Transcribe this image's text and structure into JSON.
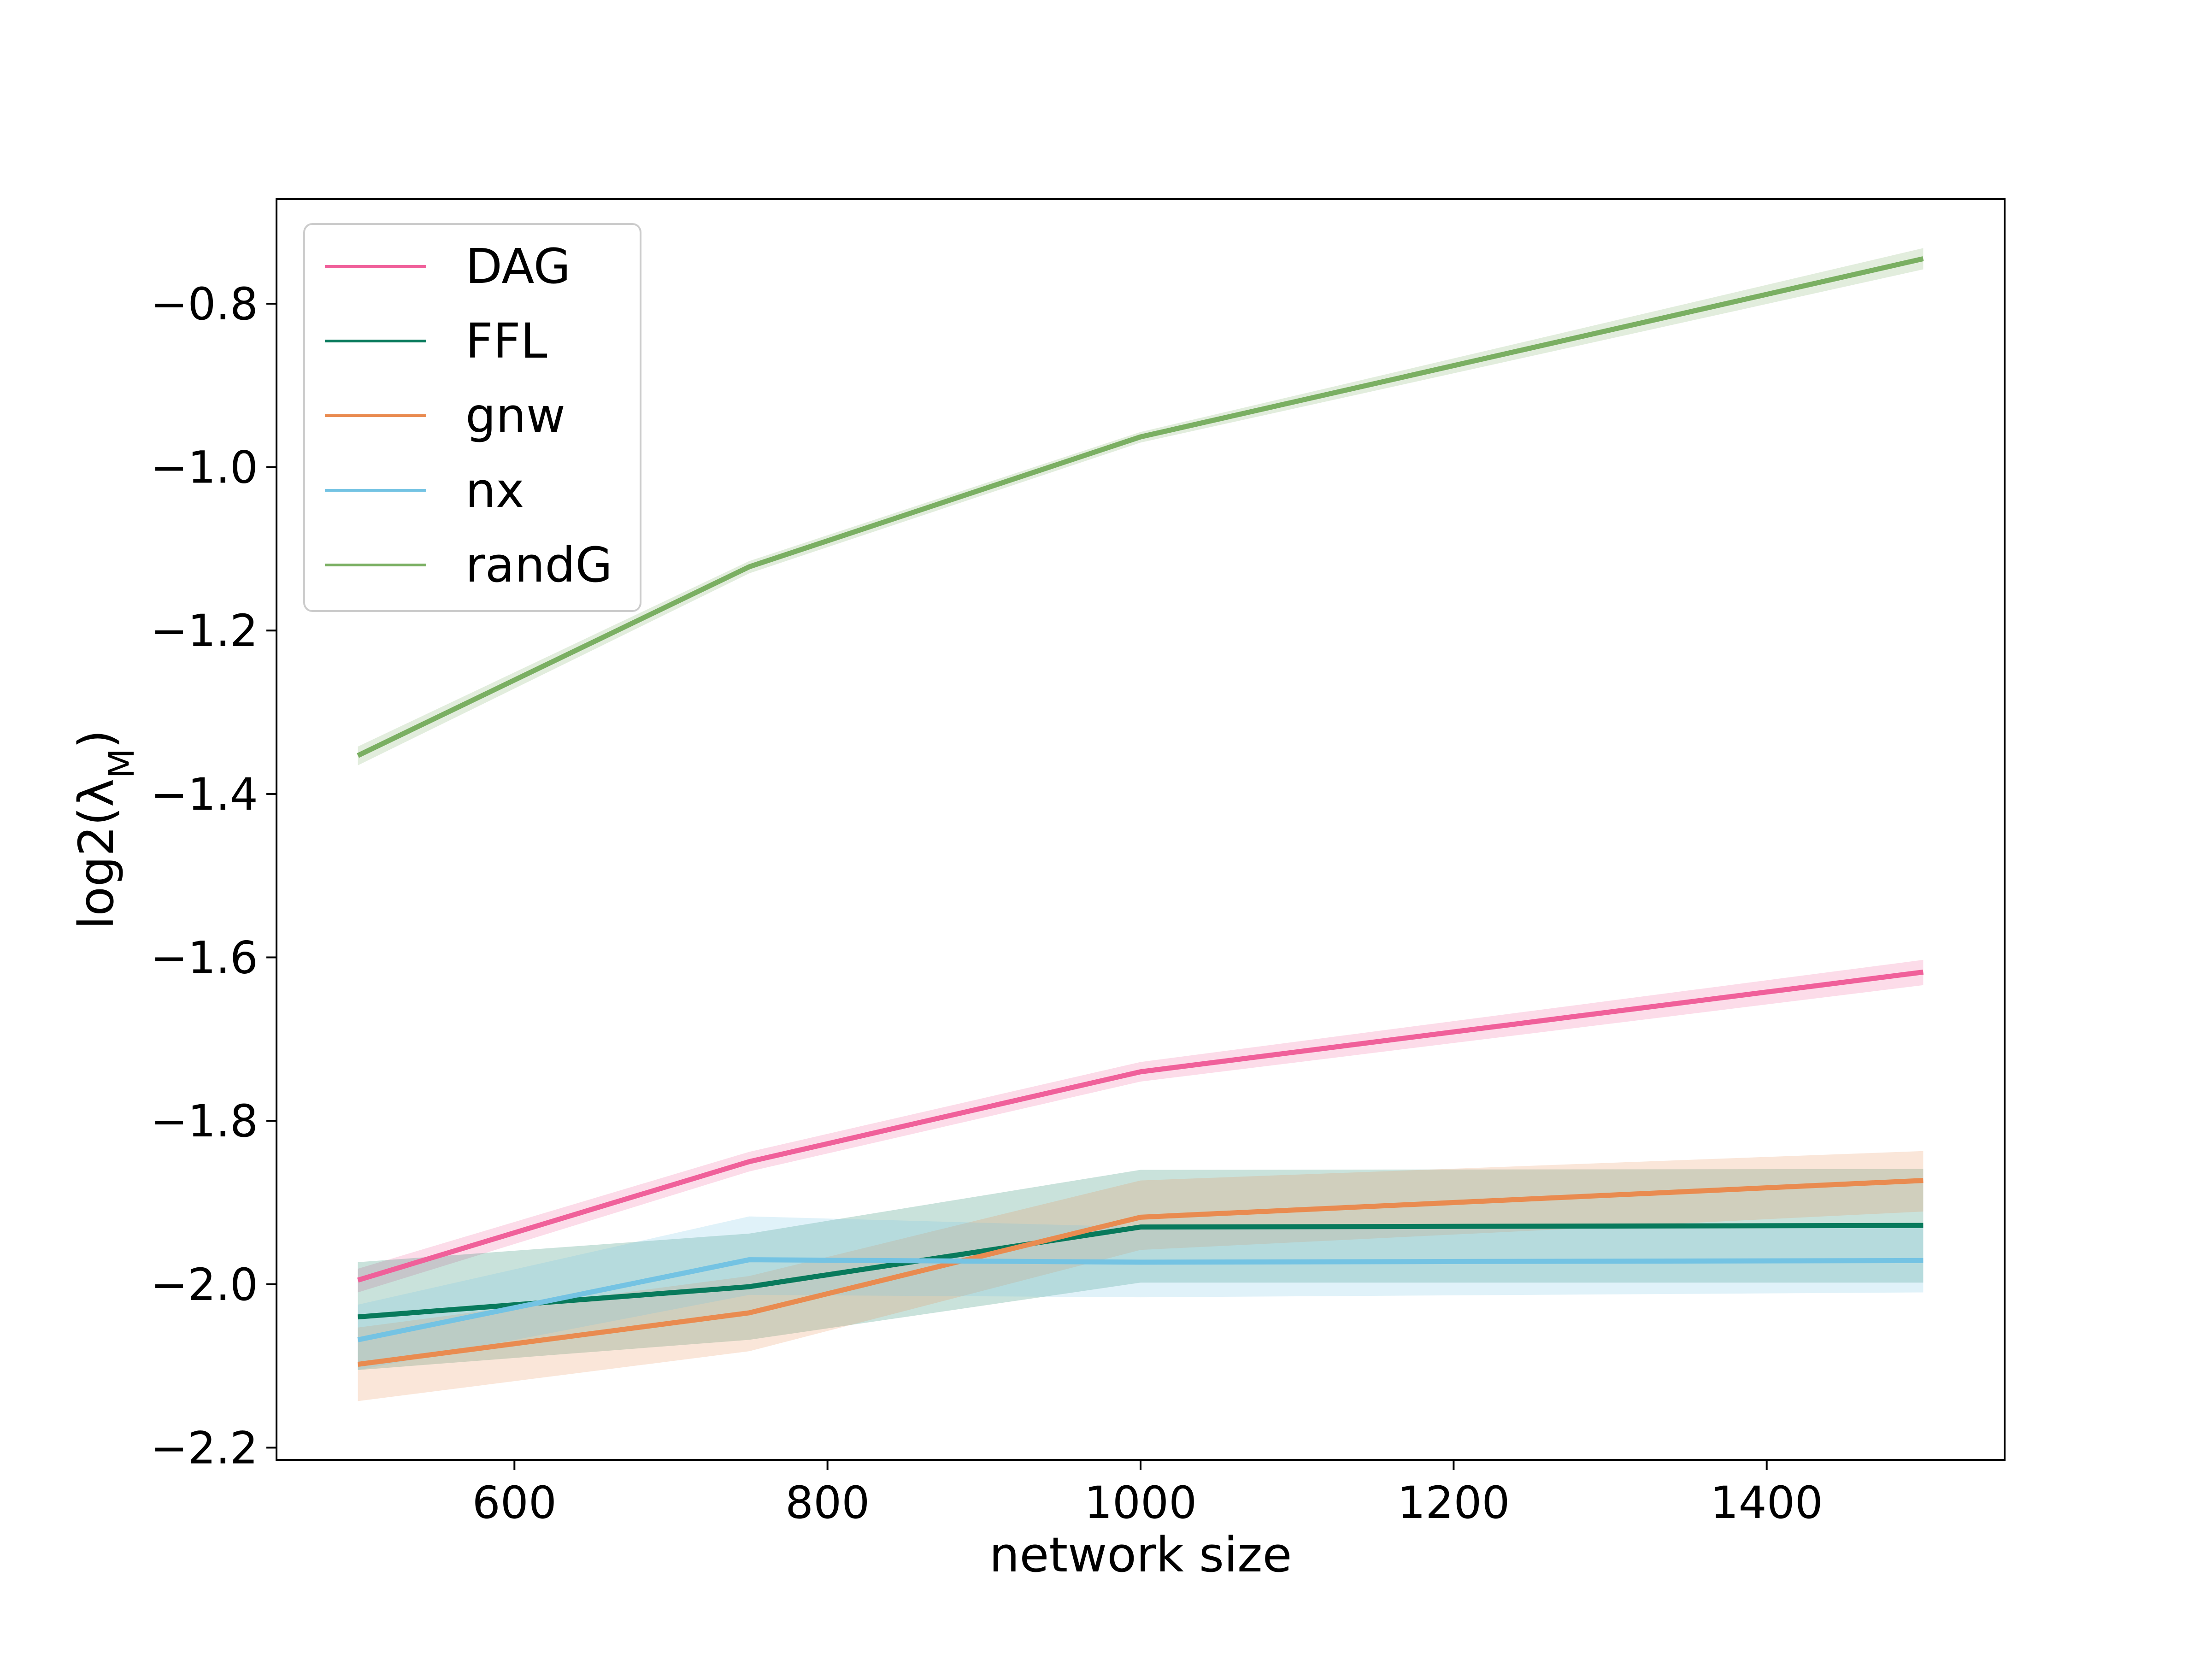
{
  "chart_data": {
    "type": "line",
    "title": "",
    "xlabel": "network size",
    "ylabel": "log2(λ_M)",
    "ylabel_base": "log2(λ",
    "ylabel_sub": "M",
    "ylabel_close": ")",
    "x": [
      500,
      750,
      1000,
      1500
    ],
    "xlim": [
      448,
      1552
    ],
    "ylim": [
      -2.215,
      -0.672
    ],
    "xticks": [
      600,
      800,
      1000,
      1200,
      1400
    ],
    "yticks": [
      -2.2,
      -2.0,
      -1.8,
      -1.6,
      -1.4,
      -1.2,
      -1.0,
      -0.8
    ],
    "xtick_labels": [
      "600",
      "800",
      "1000",
      "1200",
      "1400"
    ],
    "ytick_labels": [
      "−2.2",
      "−2.0",
      "−1.8",
      "−1.6",
      "−1.4",
      "−1.2",
      "−1.0",
      "−0.8"
    ],
    "grid": false,
    "legend_position": "top-left",
    "series": [
      {
        "name": "DAG",
        "color": "#f0609a",
        "values": [
          -1.995,
          -1.85,
          -1.74,
          -1.618
        ],
        "lower": [
          -2.01,
          -1.862,
          -1.752,
          -1.634
        ],
        "upper": [
          -1.981,
          -1.838,
          -1.728,
          -1.603
        ]
      },
      {
        "name": "FFL",
        "color": "#087a5c",
        "values": [
          -2.04,
          -2.003,
          -1.93,
          -1.928
        ],
        "lower": [
          -2.105,
          -2.068,
          -1.998,
          -1.998
        ],
        "upper": [
          -1.973,
          -1.938,
          -1.86,
          -1.859
        ]
      },
      {
        "name": "gnw",
        "color": "#e98b50",
        "values": [
          -2.098,
          -2.035,
          -1.918,
          -1.873
        ],
        "lower": [
          -2.143,
          -2.082,
          -1.958,
          -1.911
        ],
        "upper": [
          -2.053,
          -1.99,
          -1.873,
          -1.837
        ]
      },
      {
        "name": "nx",
        "color": "#74c3e3",
        "values": [
          -2.068,
          -1.97,
          -1.973,
          -1.971
        ],
        "lower": [
          -2.105,
          -2.013,
          -2.016,
          -2.01
        ],
        "upper": [
          -2.025,
          -1.917,
          -1.93,
          -1.929
        ]
      },
      {
        "name": "randG",
        "color": "#7aaf62",
        "values": [
          -1.353,
          -1.122,
          -0.963,
          -0.745
        ],
        "lower": [
          -1.365,
          -1.13,
          -0.97,
          -0.758
        ],
        "upper": [
          -1.342,
          -1.115,
          -0.957,
          -0.732
        ]
      }
    ]
  }
}
